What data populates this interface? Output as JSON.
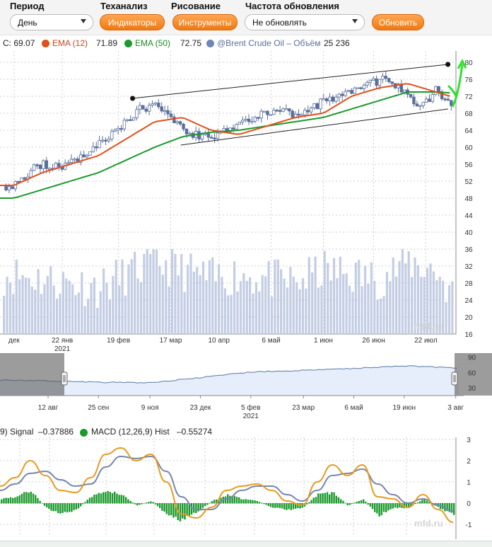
{
  "toolbar": {
    "period_label": "Период",
    "period_value": "День",
    "ta_label": "Теханализ",
    "indicators_button": "Индикаторы",
    "drawing_label": "Рисование",
    "tools_button": "Инструменты",
    "refresh_label": "Частота обновления",
    "refresh_value": "Не обновлять",
    "refresh_button": "Обновить"
  },
  "legend": {
    "close": "C: 69.07",
    "ema12_label": "EMA (12)",
    "ema12_value": "71.89",
    "ema50_label": "EMA (50)",
    "ema50_value": "72.75",
    "volume_label": "@Brent Crude Oil – Объём",
    "volume_value": "25 236"
  },
  "macd_legend": {
    "signal_label": "9) Signal",
    "signal_value": "–0.37886",
    "hist_label": "MACD (12,26,9) Hist",
    "hist_value": "–0.55274"
  },
  "watermark": "mfd.ru",
  "colors": {
    "ema12": "#e0501a",
    "ema50": "#1a9a2c",
    "volume": "#6f86b8",
    "candle": "#5a6e9a",
    "macd": "#e89a1e",
    "signal": "#7487b0",
    "hist": "#1a9a2c",
    "highlight": "#2ee02e"
  },
  "chart_data": [
    {
      "type": "candlestick",
      "series": [
        {
          "name": "EMA (12)",
          "x": [
            "2020-12-29",
            "2021-01-12",
            "2021-01-26",
            "2021-02-09",
            "2021-02-23",
            "2021-03-09",
            "2021-03-23",
            "2021-04-06",
            "2021-04-20",
            "2021-05-04",
            "2021-05-18",
            "2021-06-01",
            "2021-06-15",
            "2021-06-29",
            "2021-07-13",
            "2021-07-27",
            "2021-08-04"
          ],
          "values": [
            51,
            54,
            56,
            58,
            62,
            66,
            67,
            64,
            63,
            65,
            67,
            68,
            72,
            74,
            75,
            73,
            71.89
          ]
        },
        {
          "name": "EMA (50)",
          "x": [
            "2020-12-29",
            "2021-01-12",
            "2021-01-26",
            "2021-02-09",
            "2021-02-23",
            "2021-03-09",
            "2021-03-23",
            "2021-04-06",
            "2021-04-20",
            "2021-05-04",
            "2021-05-18",
            "2021-06-01",
            "2021-06-15",
            "2021-06-29",
            "2021-07-13",
            "2021-07-27",
            "2021-08-04"
          ],
          "values": [
            48,
            50,
            52,
            54,
            57,
            60,
            62.5,
            63.5,
            64,
            65,
            66,
            67,
            69,
            71,
            73,
            73,
            72.75
          ]
        },
        {
          "name": "Close",
          "x": [
            "2020-12-29",
            "2021-01-05",
            "2021-01-12",
            "2021-01-19",
            "2021-01-26",
            "2021-02-02",
            "2021-02-09",
            "2021-02-16",
            "2021-02-23",
            "2021-03-02",
            "2021-03-09",
            "2021-03-16",
            "2021-03-23",
            "2021-03-30",
            "2021-04-06",
            "2021-04-13",
            "2021-04-20",
            "2021-04-27",
            "2021-05-04",
            "2021-05-11",
            "2021-05-18",
            "2021-05-25",
            "2021-06-01",
            "2021-06-08",
            "2021-06-15",
            "2021-06-22",
            "2021-06-29",
            "2021-07-06",
            "2021-07-13",
            "2021-07-20",
            "2021-07-27",
            "2021-08-04"
          ],
          "values": [
            51,
            54,
            56,
            55.5,
            56,
            58,
            61,
            63,
            66,
            69,
            69.5,
            68,
            64,
            63,
            62.5,
            64,
            66,
            66.5,
            68,
            69,
            67,
            68.5,
            71,
            72,
            73,
            74,
            76,
            75,
            73,
            69,
            74,
            69.07
          ]
        },
        {
          "name": "@Brent Crude Oil – Объём",
          "x": [
            "2020-12-29",
            "2021-01-12",
            "2021-01-26",
            "2021-02-09",
            "2021-02-23",
            "2021-03-09",
            "2021-03-23",
            "2021-04-06",
            "2021-04-20",
            "2021-05-04",
            "2021-05-18",
            "2021-06-01",
            "2021-06-15",
            "2021-06-29",
            "2021-07-13",
            "2021-07-27",
            "2021-08-04"
          ],
          "values": [
            30,
            29,
            28,
            27,
            30,
            33,
            31,
            29,
            30,
            29,
            28,
            31,
            30,
            29,
            33,
            31,
            25.236
          ]
        }
      ],
      "y_ticks": [
        "80",
        "76",
        "72",
        "68",
        "64",
        "60",
        "56",
        "52",
        "48",
        "44",
        "40",
        "36",
        "32",
        "28",
        "24",
        "20",
        "16"
      ],
      "x_ticks": [
        "дек",
        "22 янв",
        "19 фев",
        "17 мар",
        "10 апр",
        "6 май",
        "1 июн",
        "26 июн",
        "22 июл"
      ],
      "x_year": "2021",
      "channel": {
        "upper": [
          [
            "2021-02-26",
            71.5
          ],
          [
            "2021-08-02",
            79.5
          ]
        ],
        "lower": [
          [
            "2021-03-22",
            60.5
          ],
          [
            "2021-08-02",
            69
          ]
        ]
      },
      "ylim": [
        16,
        82
      ]
    },
    {
      "type": "area",
      "x_ticks": [
        "12 авг",
        "25 сен",
        "9 ноя",
        "23 дек",
        "5 фев",
        "23 мар",
        "6 май",
        "19 июн",
        "3 авг"
      ],
      "x_year": "2021",
      "y_ticks": [
        "90",
        "60",
        "30"
      ],
      "x": [
        "2020-07-01",
        "2020-08-12",
        "2020-09-25",
        "2020-11-09",
        "2020-12-23",
        "2021-02-05",
        "2021-03-23",
        "2021-05-06",
        "2021-06-19",
        "2021-08-03"
      ],
      "values": [
        45,
        44,
        41,
        40,
        50,
        61,
        64,
        68,
        73,
        69
      ],
      "ylim": [
        15,
        95
      ]
    },
    {
      "type": "line",
      "y_ticks": [
        "3",
        "2",
        "1",
        "0",
        "-1"
      ],
      "series": [
        {
          "name": "MACD",
          "values": [
            0.8,
            1.2,
            2.0,
            1.3,
            0.6,
            0.5,
            1.2,
            2.3,
            2.6,
            2.0,
            2.3,
            1.0,
            -0.5,
            -0.7,
            -0.2,
            0.6,
            0.8,
            0.9,
            0.6,
            0.1,
            -0.1,
            1.0,
            1.8,
            1.3,
            1.8,
            0.3,
            0.2,
            -0.2,
            0.4,
            -0.3,
            -0.9
          ]
        },
        {
          "name": "Signal",
          "values": [
            0.6,
            0.9,
            1.4,
            1.5,
            1.1,
            0.8,
            0.9,
            1.7,
            2.2,
            2.1,
            2.2,
            1.5,
            0.3,
            -0.3,
            -0.3,
            0.2,
            0.6,
            0.8,
            0.8,
            0.4,
            0.1,
            0.6,
            1.3,
            1.4,
            1.6,
            0.9,
            0.4,
            0.0,
            0.2,
            -0.1,
            -0.38
          ]
        },
        {
          "name": "MACD (12,26,9) Hist",
          "values": [
            0.2,
            0.3,
            0.6,
            -0.2,
            -0.5,
            -0.3,
            0.3,
            0.6,
            0.4,
            -0.1,
            0.1,
            -0.5,
            -0.8,
            -0.4,
            0.1,
            0.4,
            0.2,
            0.1,
            -0.2,
            -0.3,
            -0.2,
            0.4,
            0.5,
            -0.1,
            0.2,
            -0.6,
            -0.2,
            -0.2,
            0.2,
            -0.2,
            -0.55
          ]
        }
      ],
      "ylim": [
        -1.5,
        3
      ]
    }
  ]
}
